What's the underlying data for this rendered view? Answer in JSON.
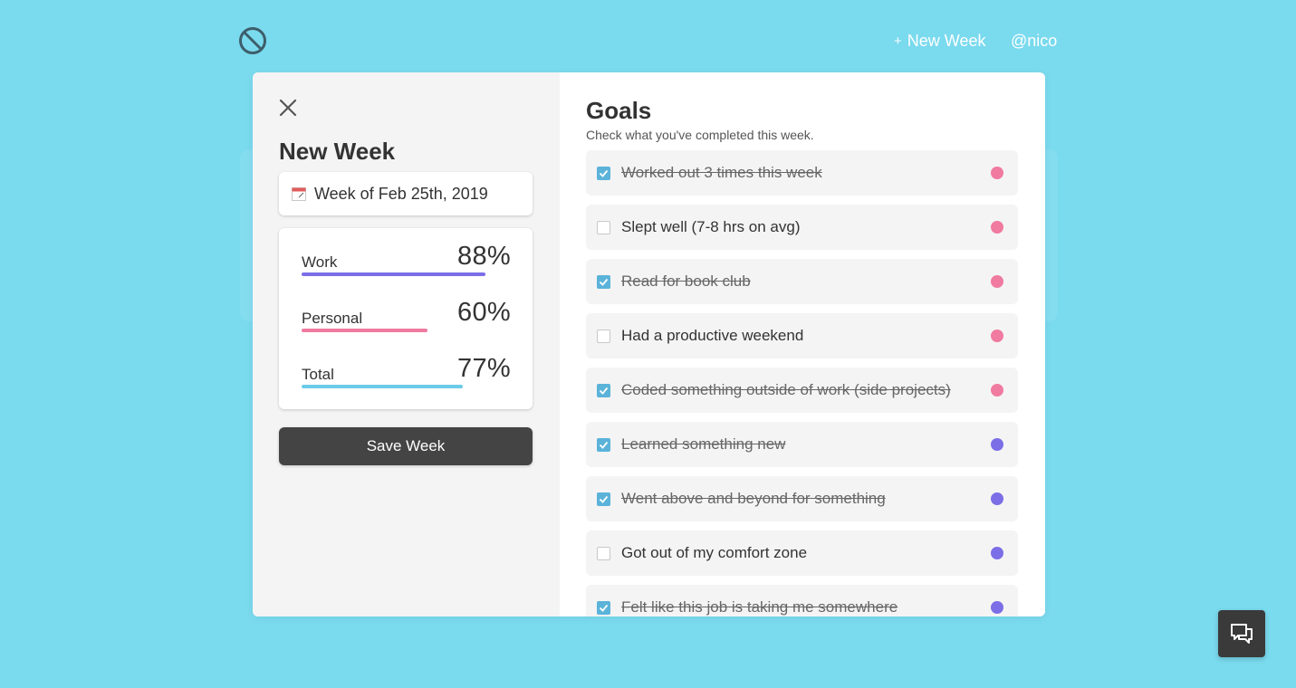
{
  "header": {
    "logo_icon": "no-entry-icon",
    "new_week_label": "New Week",
    "user_label": "@nico"
  },
  "modal": {
    "title": "New Week",
    "date_field": "Week of Feb 25th, 2019",
    "stats": [
      {
        "label": "Work",
        "value": "88%",
        "percent": 88,
        "color": "#7b6ee6"
      },
      {
        "label": "Personal",
        "value": "60%",
        "percent": 60,
        "color": "#f07aa0"
      },
      {
        "label": "Total",
        "value": "77%",
        "percent": 77,
        "color": "#6ccbe8"
      }
    ],
    "save_label": "Save Week"
  },
  "goals": {
    "title": "Goals",
    "subtitle": "Check what you've completed this week.",
    "items": [
      {
        "text": "Worked out 3 times this week",
        "checked": true,
        "color": "#f07aa0"
      },
      {
        "text": "Slept well (7-8 hrs on avg)",
        "checked": false,
        "color": "#f07aa0"
      },
      {
        "text": "Read for book club",
        "checked": true,
        "color": "#f07aa0"
      },
      {
        "text": "Had a productive weekend",
        "checked": false,
        "color": "#f07aa0"
      },
      {
        "text": "Coded something outside of work (side projects)",
        "checked": true,
        "color": "#f07aa0"
      },
      {
        "text": "Learned something new",
        "checked": true,
        "color": "#7b6ee6"
      },
      {
        "text": "Went above and beyond for something",
        "checked": true,
        "color": "#7b6ee6"
      },
      {
        "text": "Got out of my comfort zone",
        "checked": false,
        "color": "#7b6ee6"
      },
      {
        "text": "Felt like this job is taking me somewhere",
        "checked": true,
        "color": "#7b6ee6"
      }
    ]
  },
  "chat_icon": "chat-icon"
}
